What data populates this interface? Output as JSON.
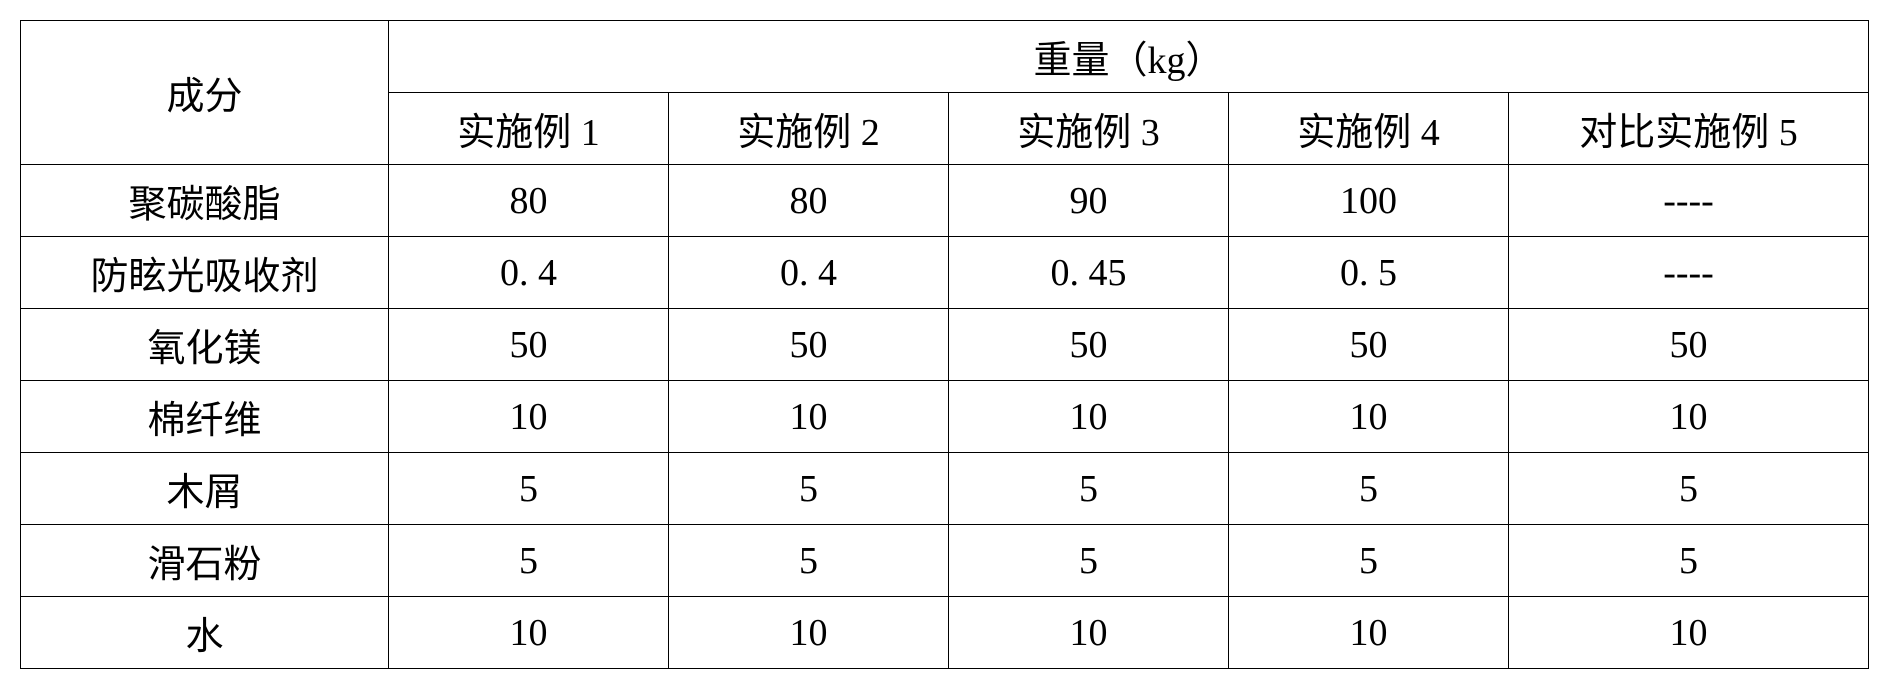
{
  "table": {
    "header": {
      "rowLabel": "成分",
      "groupLabel": "重量（kg）",
      "columns": [
        "实施例 1",
        "实施例 2",
        "实施例 3",
        "实施例 4",
        "对比实施例 5"
      ]
    },
    "rows": [
      {
        "label": "聚碳酸脂",
        "values": [
          "80",
          "80",
          "90",
          "100",
          "----"
        ]
      },
      {
        "label": "防眩光吸收剂",
        "values": [
          "0. 4",
          "0. 4",
          "0. 45",
          "0. 5",
          "----"
        ]
      },
      {
        "label": "氧化镁",
        "values": [
          "50",
          "50",
          "50",
          "50",
          "50"
        ]
      },
      {
        "label": "棉纤维",
        "values": [
          "10",
          "10",
          "10",
          "10",
          "10"
        ]
      },
      {
        "label": "木屑",
        "values": [
          "5",
          "5",
          "5",
          "5",
          "5"
        ]
      },
      {
        "label": "滑石粉",
        "values": [
          "5",
          "5",
          "5",
          "5",
          "5"
        ]
      },
      {
        "label": "水",
        "values": [
          "10",
          "10",
          "10",
          "10",
          "10"
        ]
      }
    ],
    "style": {
      "border_color": "#000000",
      "background_color": "#ffffff",
      "text_color": "#000000",
      "font_size": 38,
      "font_family": "SimSun"
    }
  }
}
